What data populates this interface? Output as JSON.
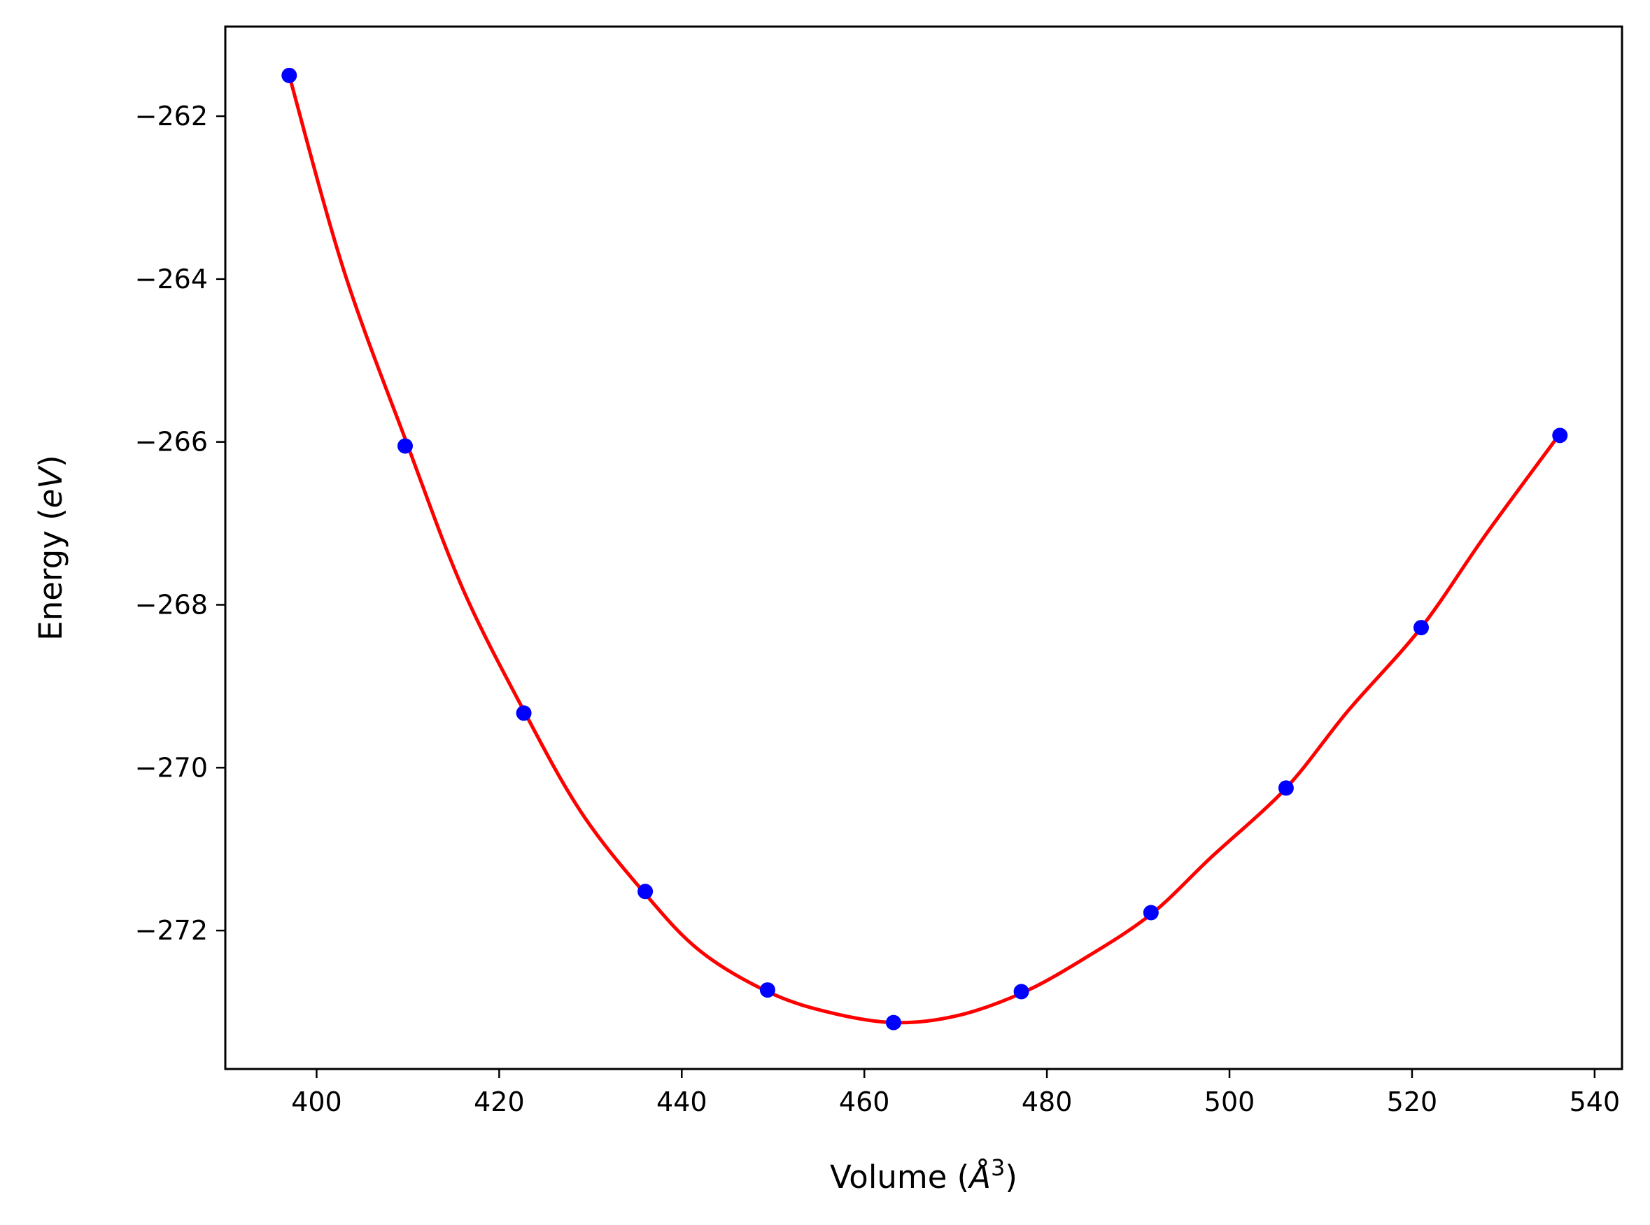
{
  "chart_data": {
    "type": "line",
    "title": "",
    "xlabel_text": "Volume (",
    "xlabel_unit": "Å",
    "xlabel_superscript": "3",
    "xlabel_close": ")",
    "ylabel_text": "Energy (",
    "ylabel_unit": "eV",
    "ylabel_close": ")",
    "xlim": [
      390,
      543
    ],
    "ylim": [
      -273.7,
      -260.9
    ],
    "xticks": [
      400,
      420,
      440,
      460,
      480,
      500,
      520,
      540
    ],
    "yticks": [
      -262,
      -264,
      -266,
      -268,
      -270,
      -272
    ],
    "xtick_labels": [
      "400",
      "420",
      "440",
      "460",
      "480",
      "500",
      "520",
      "540"
    ],
    "ytick_labels": [
      "−262",
      "−264",
      "−266",
      "−268",
      "−270",
      "−272"
    ],
    "grid": false,
    "series": [
      {
        "kind": "fit",
        "color": "#ff0000",
        "x": [
          397,
          403,
          410,
          416,
          422.7,
          429,
          436,
          442,
          449.4,
          456,
          463.2,
          470,
          477.2,
          484,
          491.4,
          498,
          506.2,
          513,
          521,
          528,
          536.2
        ],
        "y": [
          -261.5,
          -263.9,
          -266.05,
          -267.8,
          -269.3,
          -270.55,
          -271.55,
          -272.25,
          -272.75,
          -273.0,
          -273.13,
          -273.05,
          -272.77,
          -272.35,
          -271.8,
          -271.1,
          -270.25,
          -269.3,
          -268.28,
          -267.15,
          -265.9
        ]
      },
      {
        "kind": "data",
        "color": "#0000ff",
        "x": [
          397.0,
          409.7,
          422.7,
          436.0,
          449.4,
          463.2,
          477.2,
          491.4,
          506.2,
          521.0,
          536.2
        ],
        "y": [
          -261.5,
          -266.05,
          -269.33,
          -271.52,
          -272.73,
          -273.13,
          -272.75,
          -271.78,
          -270.25,
          -268.28,
          -265.92
        ]
      }
    ]
  }
}
